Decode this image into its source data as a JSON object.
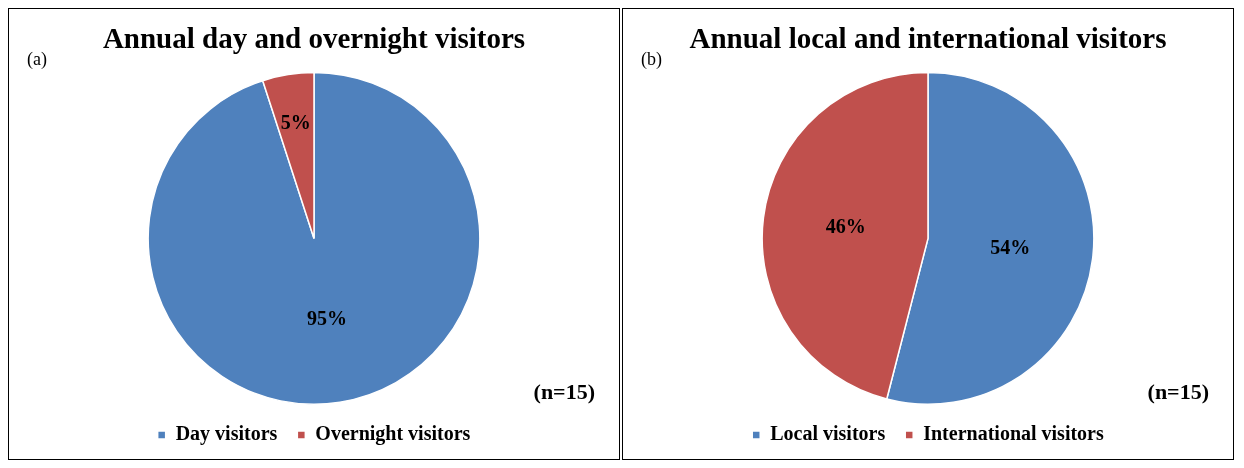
{
  "chart_data": [
    {
      "type": "pie",
      "title": "Annual day and overnight visitors",
      "categories": [
        "Day visitors",
        "Overnight visitors"
      ],
      "values": [
        95,
        5
      ],
      "colors": [
        "#4f81bd",
        "#c0504d"
      ],
      "value_labels": [
        "95%",
        "5%"
      ],
      "legend": "bottom",
      "annotations": [
        "(a)",
        "(n=15)"
      ]
    },
    {
      "type": "pie",
      "title": "Annual local and international visitors",
      "categories": [
        "Local visitors",
        "International visitors"
      ],
      "values": [
        54,
        46
      ],
      "colors": [
        "#4f81bd",
        "#c0504d"
      ],
      "value_labels": [
        "54%",
        "46%"
      ],
      "legend": "bottom",
      "annotations": [
        "(b)",
        "(n=15)"
      ]
    }
  ]
}
